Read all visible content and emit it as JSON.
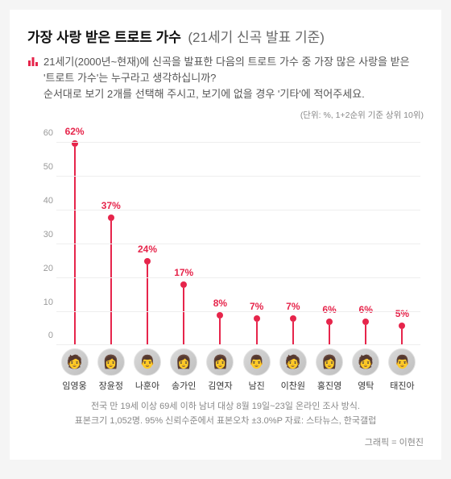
{
  "header": {
    "title_main": "가장 사랑 받은 트로트 가수",
    "title_sub": "(21세기 신곡 발표 기준)"
  },
  "description": {
    "line1": "21세기(2000년~현재)에 신곡을 발표한 다음의 트로트 가수 중 가장 많은 사랑을 받은 '트로트 가수'는 누구라고 생각하십니까?",
    "line2": "순서대로 보기 2개를 선택해 주시고, 보기에 없을 경우 '기타'에 적어주세요."
  },
  "unit_note": "(단위: %, 1+2순위 기준 상위 10위)",
  "chart": {
    "type": "lollipop",
    "ylim": [
      0,
      65
    ],
    "yticks": [
      0,
      10,
      20,
      30,
      40,
      50,
      60
    ],
    "accent_color": "#e6254b",
    "grid_color": "#eeeeee",
    "axis_label_color": "#999999",
    "value_label_color": "#e6254b",
    "value_label_color_first": "#e6254b",
    "background_color": "#ffffff",
    "stem_width": 2,
    "dot_size": 8,
    "value_fontsize": 12,
    "items": [
      {
        "name": "임영웅",
        "value": 62,
        "label": "62%",
        "emoji": "🧑"
      },
      {
        "name": "장윤정",
        "value": 37,
        "label": "37%",
        "emoji": "👩"
      },
      {
        "name": "나훈아",
        "value": 24,
        "label": "24%",
        "emoji": "👨"
      },
      {
        "name": "송가인",
        "value": 17,
        "label": "17%",
        "emoji": "👩"
      },
      {
        "name": "김연자",
        "value": 8,
        "label": "8%",
        "emoji": "👩"
      },
      {
        "name": "남진",
        "value": 7,
        "label": "7%",
        "emoji": "👨"
      },
      {
        "name": "이찬원",
        "value": 7,
        "label": "7%",
        "emoji": "🧑"
      },
      {
        "name": "홍진영",
        "value": 6,
        "label": "6%",
        "emoji": "👩"
      },
      {
        "name": "영탁",
        "value": 6,
        "label": "6%",
        "emoji": "🧑"
      },
      {
        "name": "태진아",
        "value": 5,
        "label": "5%",
        "emoji": "👨"
      }
    ]
  },
  "footer": {
    "line1": "전국 만 19세 이상 69세 이하 남녀 대상 8월 19일~23일 온라인 조사 방식.",
    "line2": "표본크기 1,052명. 95% 신뢰수준에서 표본오차 ±3.0%P 자료: 스타뉴스, 한국갤럽"
  },
  "credit": "그래픽 = 이현진"
}
